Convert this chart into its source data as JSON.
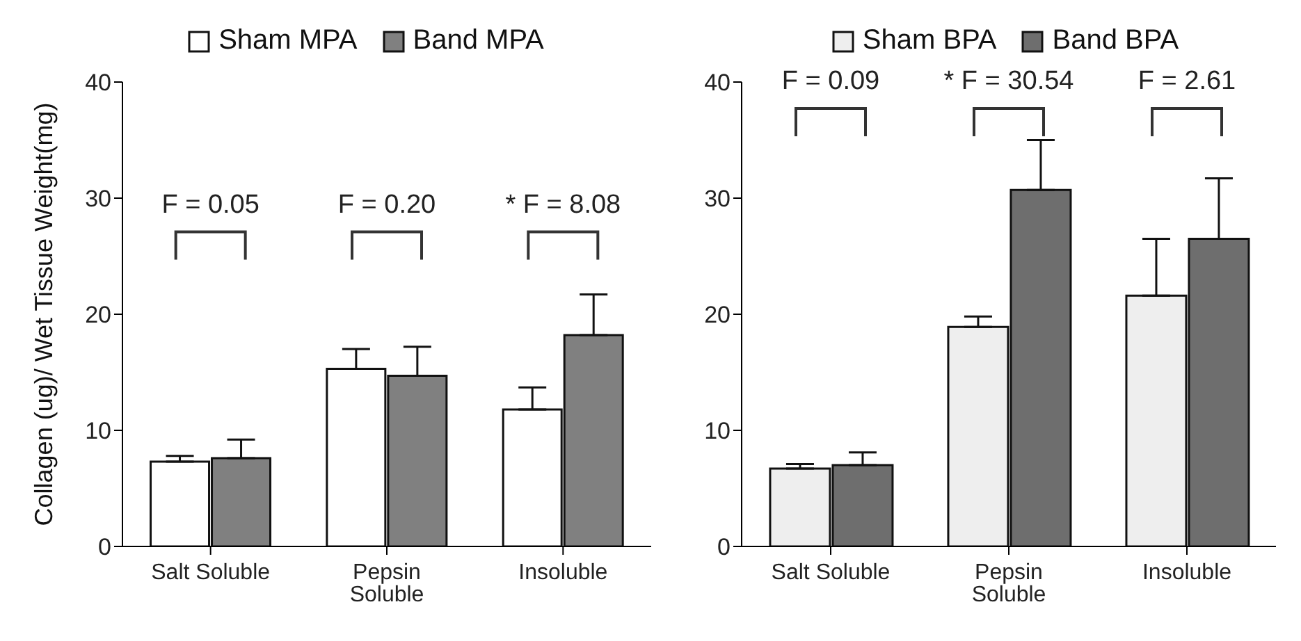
{
  "chart_data": [
    {
      "type": "bar",
      "ylabel": "Collagen (ug)/ Wet Tissue Weight(mg)",
      "categories": [
        "Salt Soluble",
        "Pepsin Soluble",
        "Insoluble"
      ],
      "series": [
        {
          "name": "Sham MPA",
          "color": "#ffffff",
          "values": [
            7.3,
            15.3,
            11.8
          ],
          "errors": [
            [
              7.3,
              7.8
            ],
            [
              15.3,
              17.0
            ],
            [
              11.8,
              13.7
            ]
          ]
        },
        {
          "name": "Band MPA",
          "color": "#808080",
          "values": [
            7.6,
            14.7,
            18.2
          ],
          "errors": [
            [
              7.6,
              9.2
            ],
            [
              14.7,
              17.2
            ],
            [
              18.2,
              21.7
            ]
          ]
        }
      ],
      "ylim": [
        0,
        40
      ],
      "yticks": [
        0,
        10,
        20,
        30,
        40
      ],
      "grid": false,
      "legend": "top",
      "annotations": [
        "F = 0.05",
        "F = 0.20",
        "* F = 8.08"
      ]
    },
    {
      "type": "bar",
      "categories": [
        "Salt Soluble",
        "Pepsin Soluble",
        "Insoluble"
      ],
      "series": [
        {
          "name": "Sham BPA",
          "color": "#eeeeee",
          "values": [
            6.7,
            18.9,
            21.6
          ],
          "errors": [
            [
              6.7,
              7.1
            ],
            [
              18.9,
              19.8
            ],
            [
              21.6,
              26.5
            ]
          ]
        },
        {
          "name": "Band BPA",
          "color": "#6e6e6e",
          "values": [
            7.0,
            30.7,
            26.5
          ],
          "errors": [
            [
              7.0,
              8.1
            ],
            [
              30.7,
              35.0
            ],
            [
              26.5,
              31.7
            ]
          ]
        }
      ],
      "ylim": [
        0,
        40
      ],
      "yticks": [
        0,
        10,
        20,
        30,
        40
      ],
      "grid": false,
      "legend": "top",
      "annotations": [
        "F = 0.09",
        "* F = 30.54",
        "F = 2.61"
      ]
    }
  ]
}
